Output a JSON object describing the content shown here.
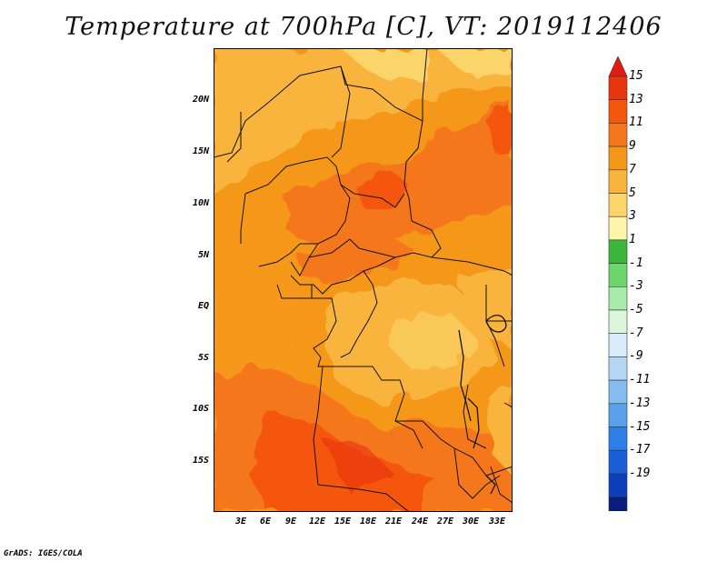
{
  "title": "Temperature at 700hPa [C], VT: 2019112406",
  "credit": "GrADS: IGES/COLA",
  "map": {
    "lat_labels": [
      "20N",
      "15N",
      "10N",
      "5N",
      "EQ",
      "5S",
      "10S",
      "15S"
    ],
    "lon_labels": [
      "3E",
      "6E",
      "9E",
      "12E",
      "15E",
      "18E",
      "21E",
      "24E",
      "27E",
      "30E",
      "33E"
    ]
  },
  "colorbar": {
    "labels": [
      "15",
      "13",
      "11",
      "9",
      "7",
      "5",
      "3",
      "1",
      "-1",
      "-3",
      "-5",
      "-7",
      "-9",
      "-11",
      "-13",
      "-15",
      "-17",
      "-19"
    ],
    "colors": [
      "#e8340f",
      "#f4560d",
      "#f5771b",
      "#f5981a",
      "#f8b43d",
      "#fcd56a",
      "#fdf5a9",
      "#3cb63c",
      "#6fd56f",
      "#a8eba8",
      "#dcf6dc",
      "#d8ecfb",
      "#b3d7f5",
      "#85bdf0",
      "#5aa0ec",
      "#2e7fe8",
      "#1a5fd7",
      "#0b3fbc",
      "#0a1d7c"
    ],
    "top_arrow_color": "#e01e10",
    "bottom_arrow_color": "#e4e4f7"
  }
}
